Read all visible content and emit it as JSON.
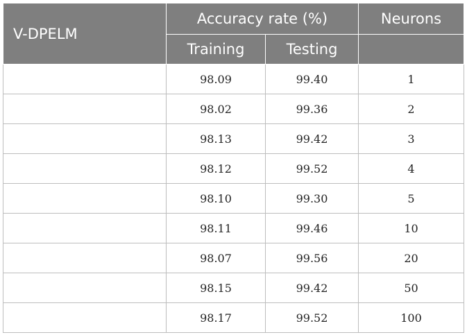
{
  "table": {
    "headers": {
      "method": "V-DPELM",
      "accuracy_group": "Accuracy rate (%)",
      "training": "Training",
      "testing": "Testing",
      "neurons": "Neurons"
    },
    "rows": [
      {
        "method": "",
        "training": "98.09",
        "testing": "99.40",
        "neurons": "1"
      },
      {
        "method": "",
        "training": "98.02",
        "testing": "99.36",
        "neurons": "2"
      },
      {
        "method": "",
        "training": "98.13",
        "testing": "99.42",
        "neurons": "3"
      },
      {
        "method": "",
        "training": "98.12",
        "testing": "99.52",
        "neurons": "4"
      },
      {
        "method": "",
        "training": "98.10",
        "testing": "99.30",
        "neurons": "5"
      },
      {
        "method": "",
        "training": "98.11",
        "testing": "99.46",
        "neurons": "10"
      },
      {
        "method": "",
        "training": "98.07",
        "testing": "99.56",
        "neurons": "20"
      },
      {
        "method": "",
        "training": "98.15",
        "testing": "99.42",
        "neurons": "50"
      },
      {
        "method": "",
        "training": "98.17",
        "testing": "99.52",
        "neurons": "100"
      }
    ]
  },
  "colors": {
    "header_bg": "#7f7f7f",
    "header_text": "#ffffff",
    "grid": "#bdbdbd"
  }
}
